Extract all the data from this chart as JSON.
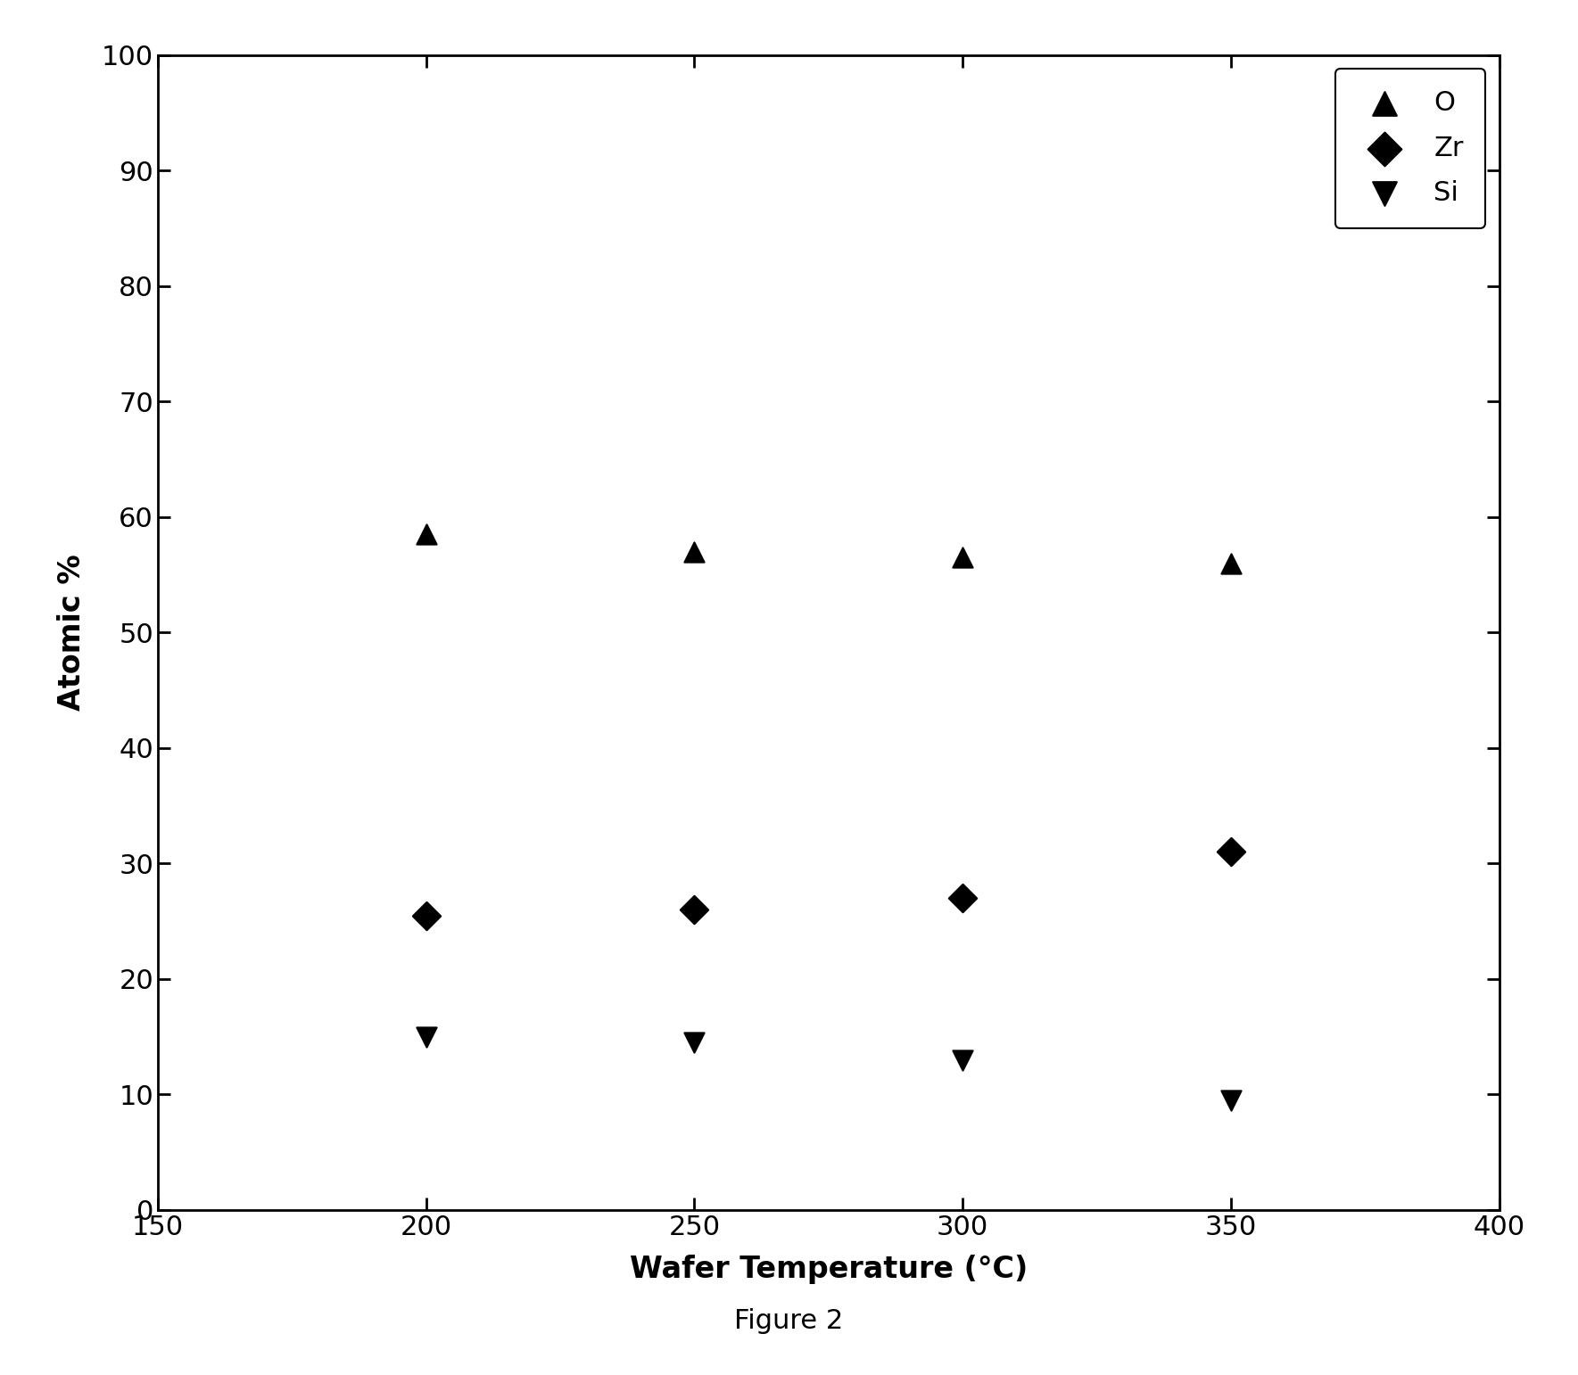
{
  "title": "Figure 2",
  "xlabel": "Wafer Temperature (°C)",
  "ylabel": "Atomic %",
  "xlim": [
    150,
    400
  ],
  "ylim": [
    0,
    100
  ],
  "xticks": [
    150,
    200,
    250,
    300,
    350,
    400
  ],
  "yticks": [
    0,
    10,
    20,
    30,
    40,
    50,
    60,
    70,
    80,
    90,
    100
  ],
  "series": [
    {
      "label": "O",
      "marker": "^",
      "color": "#000000",
      "x": [
        200,
        250,
        300,
        350
      ],
      "y": [
        58.5,
        57.0,
        56.5,
        56.0
      ]
    },
    {
      "label": "Zr",
      "marker": "D",
      "color": "#000000",
      "x": [
        200,
        250,
        300,
        350
      ],
      "y": [
        25.5,
        26.0,
        27.0,
        31.0
      ]
    },
    {
      "label": "Si",
      "marker": "v",
      "color": "#000000",
      "x": [
        200,
        250,
        300,
        350
      ],
      "y": [
        15.0,
        14.5,
        13.0,
        9.5
      ]
    }
  ],
  "marker_size": 16,
  "tick_label_fontsize": 22,
  "axis_label_fontsize": 24,
  "legend_fontsize": 22,
  "caption_fontsize": 22,
  "figure_bgcolor": "#ffffff",
  "axes_bgcolor": "#ffffff",
  "spine_color": "#000000",
  "tick_color": "#000000",
  "label_color": "#000000"
}
